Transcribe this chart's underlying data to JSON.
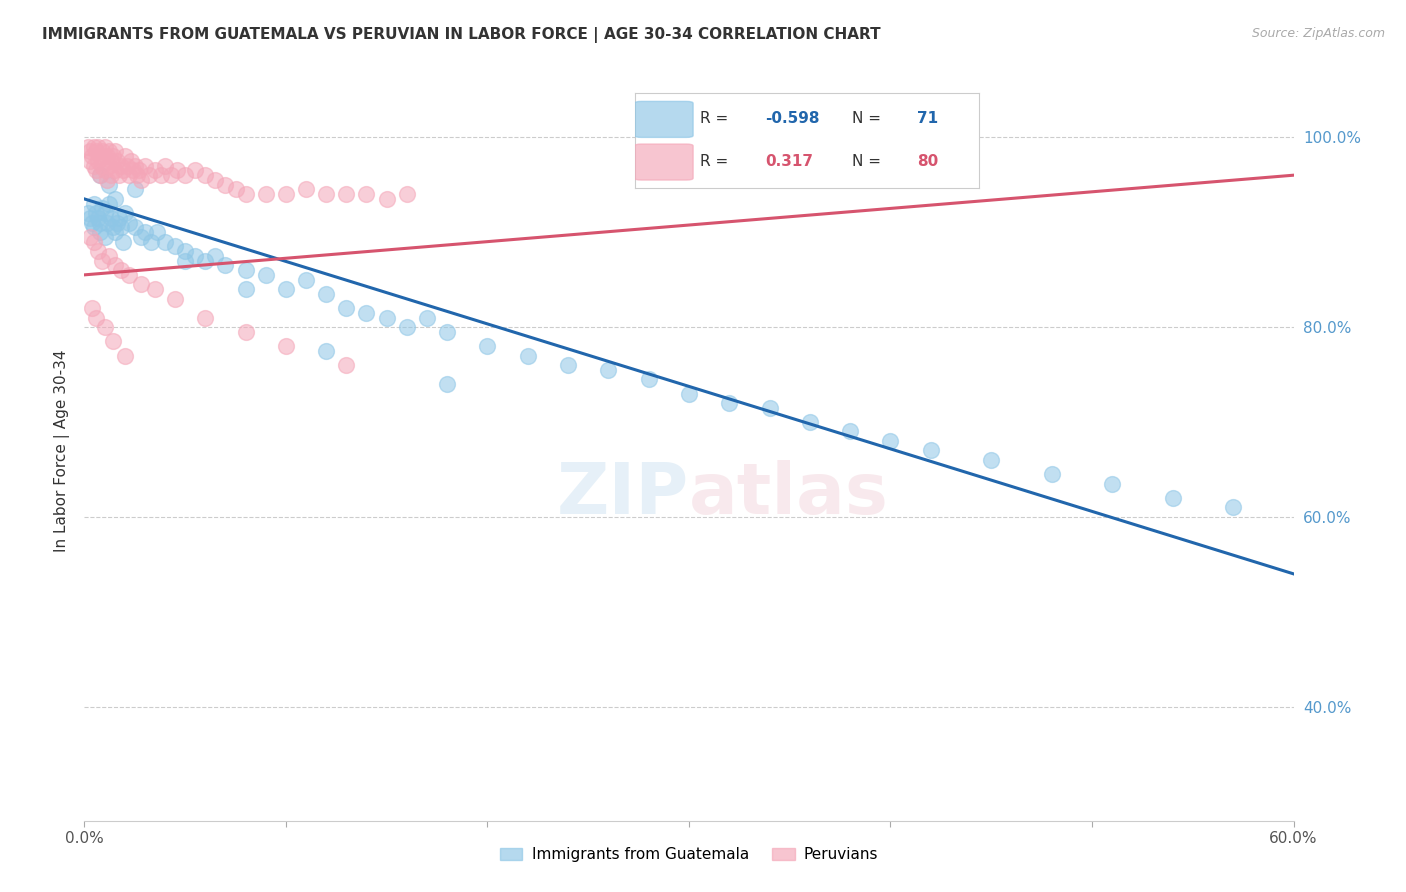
{
  "title": "IMMIGRANTS FROM GUATEMALA VS PERUVIAN IN LABOR FORCE | AGE 30-34 CORRELATION CHART",
  "source": "Source: ZipAtlas.com",
  "ylabel": "In Labor Force | Age 30-34",
  "xlim": [
    0.0,
    0.6
  ],
  "ylim": [
    0.28,
    1.06
  ],
  "xticks": [
    0.0,
    0.1,
    0.2,
    0.3,
    0.4,
    0.5,
    0.6
  ],
  "xticklabels": [
    "0.0%",
    "",
    "",
    "",
    "",
    "",
    "60.0%"
  ],
  "yticks_right": [
    0.4,
    0.6,
    0.8,
    1.0
  ],
  "yticklabels_right": [
    "40.0%",
    "60.0%",
    "80.0%",
    "100.0%"
  ],
  "legend_blue_r": "-0.598",
  "legend_blue_n": "71",
  "legend_pink_r": "0.317",
  "legend_pink_n": "80",
  "blue_color": "#8ec6e6",
  "pink_color": "#f4a6b8",
  "blue_line_color": "#2166ac",
  "pink_line_color": "#d6546e",
  "watermark": "ZIPatlas",
  "blue_line_x": [
    0.0,
    0.6
  ],
  "blue_line_y": [
    0.935,
    0.54
  ],
  "pink_line_x": [
    0.0,
    0.6
  ],
  "pink_line_y": [
    0.855,
    0.96
  ],
  "blue_scatter_x": [
    0.002,
    0.003,
    0.004,
    0.005,
    0.005,
    0.006,
    0.007,
    0.008,
    0.008,
    0.009,
    0.01,
    0.01,
    0.011,
    0.012,
    0.013,
    0.014,
    0.015,
    0.015,
    0.016,
    0.017,
    0.018,
    0.019,
    0.02,
    0.022,
    0.025,
    0.028,
    0.03,
    0.033,
    0.036,
    0.04,
    0.045,
    0.05,
    0.055,
    0.06,
    0.065,
    0.07,
    0.08,
    0.09,
    0.1,
    0.11,
    0.12,
    0.13,
    0.14,
    0.15,
    0.16,
    0.17,
    0.18,
    0.2,
    0.22,
    0.24,
    0.26,
    0.28,
    0.3,
    0.32,
    0.34,
    0.36,
    0.38,
    0.4,
    0.42,
    0.45,
    0.48,
    0.51,
    0.54,
    0.57,
    0.008,
    0.012,
    0.025,
    0.05,
    0.08,
    0.12,
    0.18
  ],
  "blue_scatter_y": [
    0.92,
    0.915,
    0.91,
    0.93,
    0.905,
    0.92,
    0.915,
    0.91,
    0.9,
    0.925,
    0.92,
    0.895,
    0.91,
    0.93,
    0.915,
    0.905,
    0.935,
    0.9,
    0.91,
    0.915,
    0.905,
    0.89,
    0.92,
    0.91,
    0.905,
    0.895,
    0.9,
    0.89,
    0.9,
    0.89,
    0.885,
    0.88,
    0.875,
    0.87,
    0.875,
    0.865,
    0.86,
    0.855,
    0.84,
    0.85,
    0.835,
    0.82,
    0.815,
    0.81,
    0.8,
    0.81,
    0.795,
    0.78,
    0.77,
    0.76,
    0.755,
    0.745,
    0.73,
    0.72,
    0.715,
    0.7,
    0.69,
    0.68,
    0.67,
    0.66,
    0.645,
    0.635,
    0.62,
    0.61,
    0.96,
    0.95,
    0.945,
    0.87,
    0.84,
    0.775,
    0.74
  ],
  "pink_scatter_x": [
    0.002,
    0.003,
    0.003,
    0.004,
    0.005,
    0.005,
    0.006,
    0.006,
    0.007,
    0.007,
    0.008,
    0.008,
    0.009,
    0.009,
    0.01,
    0.01,
    0.011,
    0.011,
    0.012,
    0.012,
    0.013,
    0.013,
    0.014,
    0.015,
    0.015,
    0.016,
    0.017,
    0.018,
    0.019,
    0.02,
    0.021,
    0.022,
    0.023,
    0.024,
    0.025,
    0.026,
    0.027,
    0.028,
    0.03,
    0.032,
    0.035,
    0.038,
    0.04,
    0.043,
    0.046,
    0.05,
    0.055,
    0.06,
    0.065,
    0.07,
    0.075,
    0.08,
    0.09,
    0.1,
    0.11,
    0.12,
    0.13,
    0.14,
    0.15,
    0.16,
    0.003,
    0.005,
    0.007,
    0.009,
    0.012,
    0.015,
    0.018,
    0.022,
    0.028,
    0.035,
    0.045,
    0.06,
    0.08,
    0.1,
    0.13,
    0.004,
    0.006,
    0.01,
    0.014,
    0.02
  ],
  "pink_scatter_y": [
    0.99,
    0.985,
    0.975,
    0.98,
    0.99,
    0.97,
    0.985,
    0.965,
    0.99,
    0.975,
    0.98,
    0.96,
    0.985,
    0.97,
    0.99,
    0.965,
    0.98,
    0.955,
    0.985,
    0.97,
    0.975,
    0.96,
    0.98,
    0.985,
    0.965,
    0.975,
    0.96,
    0.97,
    0.965,
    0.98,
    0.97,
    0.96,
    0.975,
    0.965,
    0.97,
    0.96,
    0.965,
    0.955,
    0.97,
    0.96,
    0.965,
    0.96,
    0.97,
    0.96,
    0.965,
    0.96,
    0.965,
    0.96,
    0.955,
    0.95,
    0.945,
    0.94,
    0.94,
    0.94,
    0.945,
    0.94,
    0.94,
    0.94,
    0.935,
    0.94,
    0.895,
    0.89,
    0.88,
    0.87,
    0.875,
    0.865,
    0.86,
    0.855,
    0.845,
    0.84,
    0.83,
    0.81,
    0.795,
    0.78,
    0.76,
    0.82,
    0.81,
    0.8,
    0.785,
    0.77
  ]
}
